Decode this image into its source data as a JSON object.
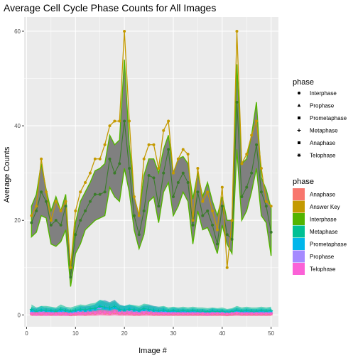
{
  "chart_data": {
    "type": "line",
    "title": "Average Cell Cycle Phase Counts for All Images",
    "xlabel": "Image #",
    "ylabel": "Average Counts",
    "xlim": [
      -0.5,
      51.5
    ],
    "ylim": [
      -2.5,
      63
    ],
    "x_ticks": [
      0,
      10,
      20,
      30,
      40,
      50
    ],
    "y_ticks": [
      0,
      20,
      40,
      60
    ],
    "grid": true,
    "legend_placement": "right",
    "shape_legend": {
      "title": "phase",
      "items": [
        {
          "label": "Interphase",
          "shape": "circle"
        },
        {
          "label": "Prophase",
          "shape": "triangle"
        },
        {
          "label": "Prometaphase",
          "shape": "square"
        },
        {
          "label": "Metaphase",
          "shape": "plus"
        },
        {
          "label": "Anaphase",
          "shape": "square-filled"
        },
        {
          "label": "Telophase",
          "shape": "asterisk"
        }
      ]
    },
    "color_legend": {
      "title": "phase",
      "items": [
        {
          "label": "Anaphase",
          "color": "#F8766D"
        },
        {
          "label": "Answer Key",
          "color": "#C49A00"
        },
        {
          "label": "Interphase",
          "color": "#53B400"
        },
        {
          "label": "Metaphase",
          "color": "#00C094"
        },
        {
          "label": "Prometaphase",
          "color": "#00B6EB"
        },
        {
          "label": "Prophase",
          "color": "#A58AFF"
        },
        {
          "label": "Telophase",
          "color": "#FB61D7"
        }
      ]
    },
    "x": [
      1,
      2,
      3,
      4,
      5,
      6,
      7,
      8,
      9,
      10,
      11,
      12,
      13,
      14,
      15,
      16,
      17,
      18,
      19,
      20,
      21,
      22,
      23,
      24,
      25,
      26,
      27,
      28,
      29,
      30,
      31,
      32,
      33,
      34,
      35,
      36,
      37,
      38,
      39,
      40,
      41,
      42,
      43,
      44,
      45,
      46,
      47,
      48,
      49,
      50
    ],
    "series": [
      {
        "name": "Answer Key",
        "color": "#C49A00",
        "values": [
          21,
          23,
          33,
          26,
          20,
          24,
          22,
          24,
          10,
          22,
          26,
          28,
          30,
          33,
          33,
          36,
          40,
          41,
          41,
          60,
          41,
          25,
          21,
          33,
          36,
          36,
          31,
          39,
          41,
          30,
          33,
          35,
          34,
          20,
          31,
          24,
          26,
          22,
          18,
          27,
          10,
          20,
          60,
          32,
          34,
          38,
          41,
          31,
          24,
          23
        ]
      },
      {
        "name": "Interphase",
        "color": "#53B400",
        "values": [
          19.5,
          22,
          26,
          24,
          19,
          20,
          19,
          23,
          8,
          17,
          20,
          22,
          24,
          25.5,
          25.5,
          26,
          33,
          30,
          32,
          41,
          31,
          21,
          17,
          22,
          29.5,
          29,
          23,
          30,
          35,
          25,
          28,
          30,
          28,
          19,
          26,
          21,
          22,
          19,
          15,
          23,
          17,
          16,
          45,
          25,
          27,
          30,
          36,
          26,
          23,
          17.5
        ],
        "band_low": [
          16.5,
          17.5,
          21,
          20.5,
          15,
          14.5,
          15.5,
          18,
          6,
          13,
          15,
          18,
          19,
          20,
          20.5,
          21,
          27,
          25,
          24,
          31,
          26,
          18,
          14,
          17,
          24,
          25,
          19.5,
          26,
          28,
          21,
          23,
          26,
          24,
          15,
          22,
          18,
          18.5,
          16,
          13,
          19,
          15,
          13,
          35,
          20,
          22,
          26,
          31,
          21,
          19.5,
          12.5
        ],
        "band_high": [
          23,
          25.5,
          32,
          26.5,
          22,
          25,
          22,
          25.5,
          9.5,
          19.5,
          24,
          26,
          28,
          30.5,
          31,
          32,
          38,
          36,
          37,
          54,
          36,
          25,
          21,
          29.5,
          33,
          33,
          30,
          35,
          38,
          30,
          33,
          33.5,
          32,
          24.5,
          30,
          25,
          28,
          24,
          21,
          25,
          20,
          20,
          53,
          32,
          33,
          38,
          45,
          29,
          26.5,
          22.5
        ]
      },
      {
        "name": "Prophase",
        "color": "#A58AFF",
        "values": [
          0.6,
          0.8,
          0.5,
          0.9,
          0.5,
          0.7,
          0.6,
          0.8,
          0.3,
          0.6,
          0.8,
          1.0,
          1.0,
          1.2,
          1.5,
          1.8,
          1.5,
          1.8,
          1.2,
          1.0,
          1.0,
          0.9,
          0.7,
          1.0,
          1.2,
          1.0,
          0.9,
          0.7,
          0.5,
          0.6,
          0.7,
          0.6,
          0.5,
          0.6,
          0.5,
          0.6,
          0.5,
          0.6,
          0.5,
          0.5,
          0.4,
          0.5,
          0.7,
          0.5,
          0.6,
          0.6,
          0.5,
          0.6,
          0.5,
          0.5
        ]
      },
      {
        "name": "Prometaphase",
        "color": "#00B6EB",
        "values": [
          0.9,
          0.6,
          1.0,
          0.7,
          0.8,
          0.6,
          0.9,
          0.7,
          0.5,
          0.8,
          1.0,
          0.9,
          1.0,
          1.2,
          1.8,
          1.5,
          1.3,
          1.6,
          1.0,
          1.0,
          1.2,
          1.0,
          0.8,
          1.1,
          1.0,
          0.9,
          0.7,
          0.9,
          0.6,
          0.8,
          0.6,
          0.7,
          0.6,
          0.7,
          0.6,
          0.6,
          0.5,
          0.7,
          0.6,
          0.6,
          0.5,
          0.6,
          0.8,
          0.6,
          0.7,
          0.6,
          0.6,
          0.7,
          0.6,
          0.7
        ]
      },
      {
        "name": "Metaphase",
        "color": "#00C094",
        "values": [
          1.2,
          0.8,
          1.0,
          1.0,
          0.9,
          0.8,
          1.2,
          0.9,
          0.8,
          1.0,
          1.2,
          1.1,
          1.3,
          1.4,
          1.8,
          1.7,
          1.5,
          1.8,
          1.2,
          1.0,
          1.2,
          1.1,
          1.0,
          1.3,
          1.2,
          1.0,
          0.9,
          1.0,
          0.8,
          0.9,
          0.8,
          0.9,
          0.8,
          0.9,
          0.8,
          0.8,
          0.7,
          0.8,
          0.7,
          0.8,
          0.6,
          0.7,
          1.0,
          0.8,
          0.9,
          0.8,
          0.8,
          0.9,
          0.8,
          0.9
        ]
      },
      {
        "name": "Anaphase",
        "color": "#F8766D",
        "values": [
          0.2,
          0.3,
          0.2,
          0.3,
          0.2,
          0.3,
          0.2,
          0.3,
          0.1,
          0.2,
          0.3,
          0.2,
          0.3,
          0.3,
          0.5,
          0.4,
          0.3,
          0.5,
          0.3,
          0.3,
          0.3,
          0.2,
          0.2,
          0.3,
          0.3,
          0.2,
          0.2,
          0.2,
          0.2,
          0.2,
          0.2,
          0.2,
          0.2,
          0.2,
          0.2,
          0.2,
          0.2,
          0.2,
          0.2,
          0.2,
          0.1,
          0.2,
          0.3,
          0.2,
          0.2,
          0.2,
          0.2,
          0.2,
          0.2,
          0.2
        ]
      },
      {
        "name": "Telophase",
        "color": "#FB61D7",
        "values": [
          0.3,
          0.2,
          0.3,
          0.2,
          0.3,
          0.2,
          0.3,
          0.2,
          0.2,
          0.3,
          0.3,
          0.3,
          0.4,
          0.4,
          0.5,
          0.5,
          0.4,
          0.6,
          0.4,
          0.4,
          0.4,
          0.3,
          0.3,
          0.4,
          0.4,
          0.3,
          0.3,
          0.3,
          0.3,
          0.3,
          0.3,
          0.3,
          0.3,
          0.3,
          0.3,
          0.3,
          0.2,
          0.3,
          0.3,
          0.3,
          0.2,
          0.3,
          0.4,
          0.3,
          0.3,
          0.3,
          0.3,
          0.3,
          0.3,
          0.3
        ]
      }
    ]
  }
}
